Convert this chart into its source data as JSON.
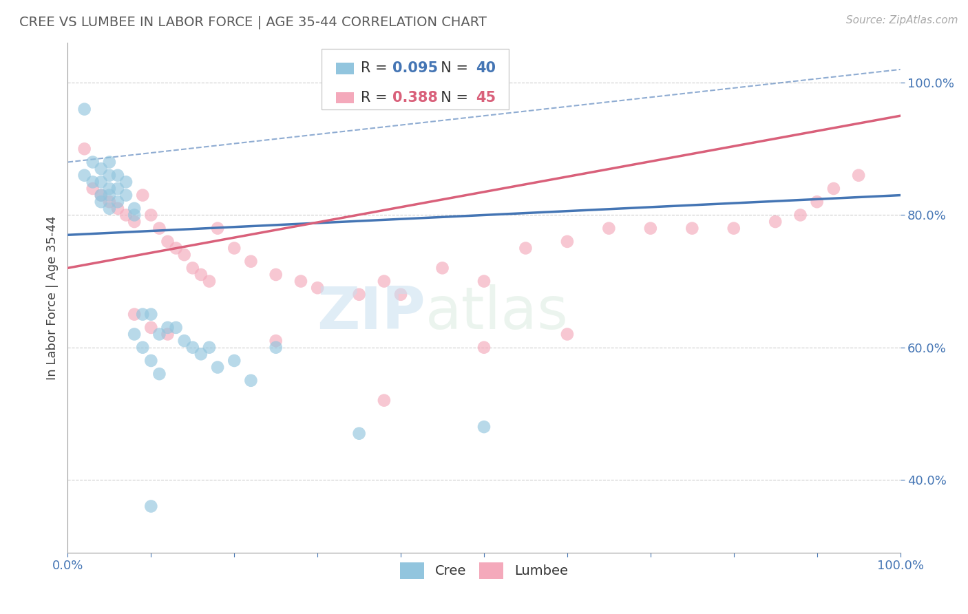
{
  "title": "CREE VS LUMBEE IN LABOR FORCE | AGE 35-44 CORRELATION CHART",
  "source_text": "Source: ZipAtlas.com",
  "ylabel": "In Labor Force | Age 35-44",
  "xlim": [
    0.0,
    1.0
  ],
  "ylim": [
    0.29,
    1.06
  ],
  "y_tick_values": [
    0.4,
    0.6,
    0.8,
    1.0
  ],
  "cree_R": 0.095,
  "cree_N": 40,
  "lumbee_R": 0.388,
  "lumbee_N": 45,
  "cree_color": "#92c5de",
  "lumbee_color": "#f4a9bb",
  "cree_line_color": "#4475b4",
  "lumbee_line_color": "#d9607a",
  "cree_line_y0": 0.77,
  "cree_line_y1": 0.83,
  "lumbee_line_y0": 0.72,
  "lumbee_line_y1": 0.95,
  "dashed_line_y0": 0.88,
  "dashed_line_y1": 1.02,
  "watermark_zip": "ZIP",
  "watermark_atlas": "atlas",
  "background_color": "#ffffff",
  "title_color": "#5a5a5a",
  "axis_label_color": "#4475b4",
  "cree_x": [
    0.02,
    0.02,
    0.03,
    0.03,
    0.04,
    0.04,
    0.04,
    0.04,
    0.05,
    0.05,
    0.05,
    0.05,
    0.05,
    0.06,
    0.06,
    0.06,
    0.07,
    0.07,
    0.08,
    0.08,
    0.09,
    0.1,
    0.11,
    0.13,
    0.15,
    0.17,
    0.35,
    0.5,
    0.08,
    0.09,
    0.1,
    0.11,
    0.12,
    0.14,
    0.16,
    0.18,
    0.2,
    0.22,
    0.25,
    0.1
  ],
  "cree_y": [
    0.96,
    0.86,
    0.88,
    0.85,
    0.87,
    0.85,
    0.83,
    0.82,
    0.88,
    0.86,
    0.84,
    0.83,
    0.81,
    0.86,
    0.84,
    0.82,
    0.85,
    0.83,
    0.81,
    0.8,
    0.65,
    0.65,
    0.62,
    0.63,
    0.6,
    0.6,
    0.47,
    0.48,
    0.62,
    0.6,
    0.58,
    0.56,
    0.63,
    0.61,
    0.59,
    0.57,
    0.58,
    0.55,
    0.6,
    0.36
  ],
  "lumbee_x": [
    0.02,
    0.03,
    0.04,
    0.05,
    0.06,
    0.07,
    0.08,
    0.09,
    0.1,
    0.11,
    0.12,
    0.13,
    0.14,
    0.15,
    0.16,
    0.17,
    0.18,
    0.2,
    0.22,
    0.25,
    0.28,
    0.3,
    0.35,
    0.38,
    0.4,
    0.45,
    0.5,
    0.55,
    0.6,
    0.65,
    0.7,
    0.75,
    0.8,
    0.85,
    0.88,
    0.9,
    0.92,
    0.95,
    0.08,
    0.1,
    0.12,
    0.25,
    0.5,
    0.38,
    0.6
  ],
  "lumbee_y": [
    0.9,
    0.84,
    0.83,
    0.82,
    0.81,
    0.8,
    0.79,
    0.83,
    0.8,
    0.78,
    0.76,
    0.75,
    0.74,
    0.72,
    0.71,
    0.7,
    0.78,
    0.75,
    0.73,
    0.71,
    0.7,
    0.69,
    0.68,
    0.7,
    0.68,
    0.72,
    0.7,
    0.75,
    0.76,
    0.78,
    0.78,
    0.78,
    0.78,
    0.79,
    0.8,
    0.82,
    0.84,
    0.86,
    0.65,
    0.63,
    0.62,
    0.61,
    0.6,
    0.52,
    0.62
  ]
}
